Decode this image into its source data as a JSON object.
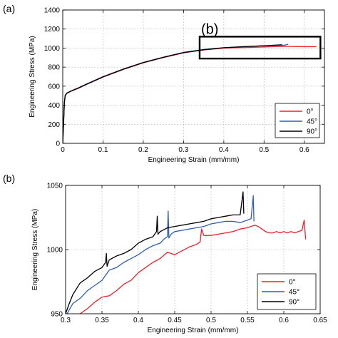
{
  "figure": {
    "panel_a_label": "(a)",
    "panel_b_label": "(b)",
    "callout_label": "(b)"
  },
  "chart_data": [
    {
      "type": "line",
      "panel": "(a)",
      "xlabel": "Engineering Strain (mm/mm)",
      "ylabel": "Engineering Stress (MPa)",
      "xlim": [
        0,
        0.65
      ],
      "ylim": [
        0,
        1400
      ],
      "xticks": [
        0,
        0.1,
        0.2,
        0.3,
        0.4,
        0.5,
        0.6
      ],
      "xtick_labels": [
        "0",
        "0.1",
        "0.2",
        "0.3",
        "0.4",
        "0.5",
        "0.6"
      ],
      "yticks": [
        0,
        200,
        400,
        600,
        800,
        1000,
        1200,
        1400
      ],
      "ytick_labels": [
        "0",
        "200",
        "400",
        "600",
        "800",
        "1000",
        "1200",
        "1400"
      ],
      "grid": true,
      "legend_position": "bottom-right",
      "callout_box": {
        "x": [
          0.34,
          0.64
        ],
        "y": [
          890,
          1120
        ]
      },
      "series": [
        {
          "name": "0°",
          "color": "#e8232a",
          "x": [
            0,
            0.002,
            0.004,
            0.006,
            0.01,
            0.02,
            0.04,
            0.06,
            0.1,
            0.15,
            0.2,
            0.25,
            0.3,
            0.35,
            0.4,
            0.45,
            0.5,
            0.55,
            0.6,
            0.63
          ],
          "y": [
            0,
            200,
            420,
            500,
            525,
            545,
            580,
            620,
            695,
            775,
            845,
            900,
            950,
            980,
            1000,
            1005,
            1012,
            1018,
            1015,
            1015
          ]
        },
        {
          "name": "45°",
          "color": "#2e5fb0",
          "x": [
            0,
            0.002,
            0.004,
            0.006,
            0.01,
            0.02,
            0.04,
            0.06,
            0.1,
            0.15,
            0.2,
            0.25,
            0.3,
            0.35,
            0.4,
            0.45,
            0.5,
            0.55,
            0.56
          ],
          "y": [
            0,
            210,
            430,
            505,
            528,
            550,
            585,
            625,
            700,
            780,
            850,
            905,
            955,
            985,
            1005,
            1015,
            1025,
            1030,
            1040
          ]
        },
        {
          "name": "90°",
          "color": "#000000",
          "x": [
            0,
            0.002,
            0.004,
            0.006,
            0.01,
            0.02,
            0.04,
            0.06,
            0.1,
            0.15,
            0.2,
            0.25,
            0.3,
            0.35,
            0.4,
            0.45,
            0.5,
            0.545
          ],
          "y": [
            0,
            205,
            425,
            500,
            525,
            548,
            583,
            622,
            698,
            778,
            848,
            903,
            953,
            983,
            1003,
            1015,
            1025,
            1035
          ]
        }
      ]
    },
    {
      "type": "line",
      "panel": "(b)",
      "xlabel": "Engineering Strain (mm/mm)",
      "ylabel": "Engineering Stress (MPa)",
      "xlim": [
        0.3,
        0.65
      ],
      "ylim": [
        950,
        1050
      ],
      "xticks": [
        0.3,
        0.35,
        0.4,
        0.45,
        0.5,
        0.55,
        0.6,
        0.65
      ],
      "xtick_labels": [
        "0.3",
        "0.35",
        "0.4",
        "0.45",
        "0.5",
        "0.55",
        "0.6",
        "0.65"
      ],
      "yticks": [
        950,
        1000,
        1050
      ],
      "ytick_labels": [
        "950",
        "1000",
        "1050"
      ],
      "grid": true,
      "legend_position": "bottom-right",
      "series": [
        {
          "name": "0°",
          "color": "#e8232a",
          "x": [
            0.3,
            0.31,
            0.32,
            0.33,
            0.34,
            0.35,
            0.36,
            0.37,
            0.38,
            0.39,
            0.4,
            0.41,
            0.42,
            0.43,
            0.44,
            0.45,
            0.46,
            0.47,
            0.48,
            0.485,
            0.487,
            0.49,
            0.5,
            0.51,
            0.52,
            0.53,
            0.54,
            0.55,
            0.555,
            0.56,
            0.565,
            0.57,
            0.575,
            0.58,
            0.585,
            0.59,
            0.595,
            0.6,
            0.605,
            0.61,
            0.615,
            0.62,
            0.625,
            0.628,
            0.63
          ],
          "y": [
            940,
            944,
            950,
            954,
            959,
            963,
            964,
            968,
            973,
            976,
            982,
            986,
            990,
            993,
            998,
            996,
            999,
            1002,
            1004,
            1006,
            1016,
            1011,
            1011,
            1012,
            1013,
            1014,
            1016,
            1017,
            1018,
            1019,
            1018,
            1016,
            1014,
            1013,
            1013,
            1014,
            1013,
            1014,
            1013,
            1014,
            1013,
            1014,
            1015,
            1023,
            1008
          ]
        },
        {
          "name": "45°",
          "color": "#2e5fb0",
          "x": [
            0.3,
            0.31,
            0.32,
            0.33,
            0.34,
            0.35,
            0.355,
            0.36,
            0.37,
            0.38,
            0.39,
            0.4,
            0.41,
            0.42,
            0.43,
            0.435,
            0.44,
            0.441,
            0.442,
            0.445,
            0.45,
            0.46,
            0.47,
            0.48,
            0.49,
            0.5,
            0.51,
            0.52,
            0.53,
            0.54,
            0.55,
            0.555,
            0.558,
            0.559
          ],
          "y": [
            948,
            958,
            962,
            968,
            972,
            976,
            980,
            984,
            986,
            990,
            993,
            996,
            1000,
            1003,
            1005,
            1008,
            1010,
            1030,
            1009,
            1012,
            1014,
            1015,
            1016,
            1017,
            1018,
            1020,
            1021,
            1022,
            1022,
            1021,
            1023,
            1024,
            1042,
            1022
          ]
        },
        {
          "name": "90°",
          "color": "#000000",
          "x": [
            0.3,
            0.305,
            0.31,
            0.32,
            0.33,
            0.34,
            0.35,
            0.355,
            0.356,
            0.357,
            0.36,
            0.37,
            0.38,
            0.39,
            0.4,
            0.41,
            0.42,
            0.425,
            0.426,
            0.427,
            0.43,
            0.44,
            0.45,
            0.46,
            0.47,
            0.48,
            0.49,
            0.5,
            0.51,
            0.52,
            0.53,
            0.54,
            0.544,
            0.545
          ],
          "y": [
            950,
            958,
            965,
            974,
            978,
            983,
            986,
            990,
            997,
            987,
            992,
            995,
            997,
            1000,
            1005,
            1008,
            1010,
            1014,
            1026,
            1012,
            1014,
            1017,
            1018,
            1019,
            1020,
            1021,
            1022,
            1024,
            1025,
            1026,
            1027,
            1027,
            1045,
            1028
          ]
        }
      ]
    }
  ]
}
